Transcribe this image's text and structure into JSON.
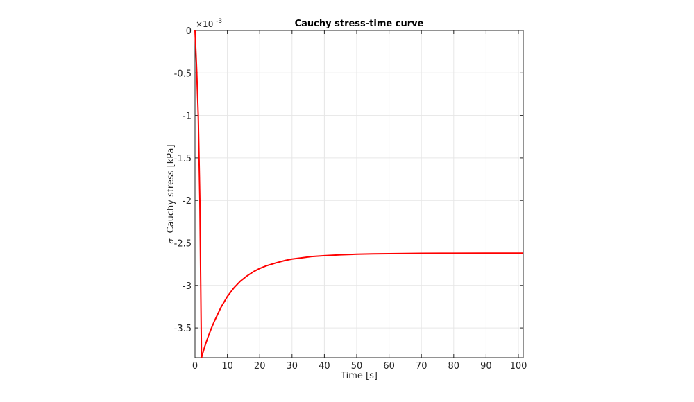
{
  "chart_data": {
    "type": "line",
    "title": "Cauchy stress-time curve",
    "xlabel": "Time [s]",
    "ylabel_symbol": "σ",
    "ylabel": "Cauchy stress [kPa]",
    "y_exponent_base": "×10",
    "y_exponent_power": "-3",
    "xlim": [
      0,
      101.5
    ],
    "ylim": [
      -3.85,
      0
    ],
    "x_ticks": [
      0,
      10,
      20,
      30,
      40,
      50,
      60,
      70,
      80,
      90,
      100
    ],
    "x_tick_labels": [
      "0",
      "10",
      "20",
      "30",
      "40",
      "50",
      "60",
      "70",
      "80",
      "90",
      "100"
    ],
    "y_ticks": [
      0,
      -0.5,
      -1,
      -1.5,
      -2,
      -2.5,
      -3,
      -3.5
    ],
    "y_tick_labels": [
      "0",
      "-0.5",
      "-1",
      "-1.5",
      "-2",
      "-2.5",
      "-3",
      "-3.5"
    ],
    "grid": true,
    "series": [
      {
        "color": "#ff0000",
        "x": [
          0,
          0.5,
          1.0,
          1.5,
          2.0,
          3,
          4,
          5,
          6,
          7,
          8,
          10,
          12,
          14,
          16,
          18,
          20,
          22,
          25,
          28,
          30,
          33,
          36,
          40,
          45,
          50,
          55,
          60,
          65,
          70,
          80,
          90,
          101.5
        ],
        "y": [
          0,
          -0.45,
          -1.0,
          -2.0,
          -3.85,
          -3.72,
          -3.61,
          -3.51,
          -3.42,
          -3.34,
          -3.26,
          -3.13,
          -3.03,
          -2.95,
          -2.89,
          -2.84,
          -2.8,
          -2.77,
          -2.735,
          -2.705,
          -2.69,
          -2.675,
          -2.66,
          -2.65,
          -2.64,
          -2.633,
          -2.629,
          -2.626,
          -2.624,
          -2.622,
          -2.621,
          -2.62,
          -2.62
        ]
      }
    ]
  }
}
